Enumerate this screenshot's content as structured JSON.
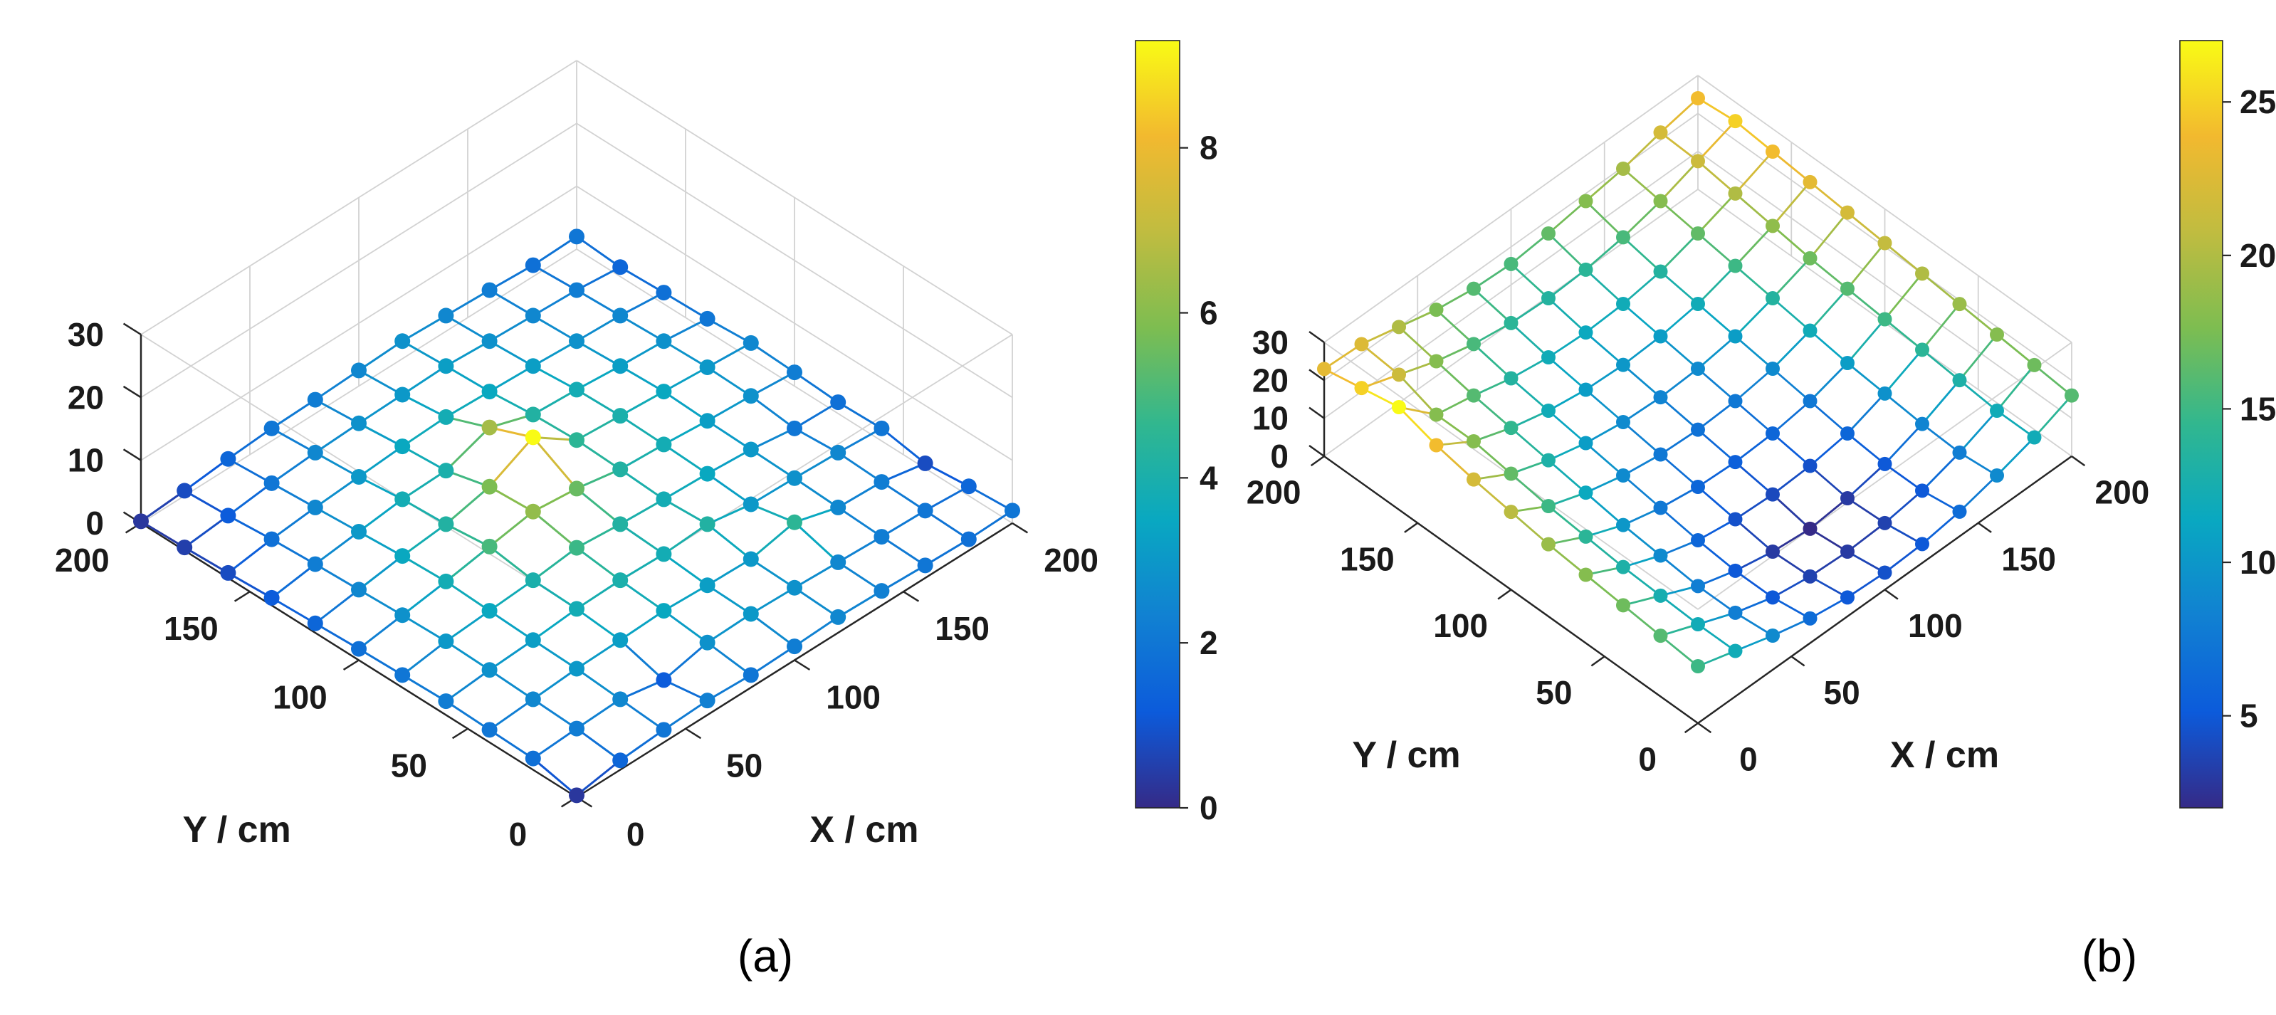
{
  "figure": {
    "background": "#ffffff",
    "text_color": "#1a1a1a",
    "grid_color": "#d2d2d2",
    "axis_color": "#262626",
    "colormap": {
      "name": "parula",
      "stops": [
        "#352a87",
        "#0c5bdb",
        "#1181d2",
        "#09a8c1",
        "#31b78f",
        "#7dbd51",
        "#c0bc40",
        "#f2b92f",
        "#f9fb15"
      ]
    },
    "panels": [
      {
        "caption": "(a)"
      },
      {
        "caption": "(b)"
      }
    ]
  },
  "chart_data": [
    {
      "type": "scatter",
      "subtype": "3d_mesh_surface_with_markers",
      "panel": "a",
      "xlabel": "X / cm",
      "ylabel": "Y / cm",
      "zlabel": "",
      "x": [
        0,
        20,
        40,
        60,
        80,
        100,
        120,
        140,
        160,
        180,
        200
      ],
      "y": [
        0,
        20,
        40,
        60,
        80,
        100,
        120,
        140,
        160,
        180,
        200
      ],
      "z": [
        [
          0.3,
          1.5,
          2.0,
          2.3,
          2.0,
          2.2,
          2.5,
          2.3,
          2.0,
          1.8,
          2.0
        ],
        [
          1.8,
          2.2,
          2.5,
          1.2,
          2.8,
          3.0,
          2.8,
          2.5,
          2.2,
          2.0,
          1.5
        ],
        [
          2.0,
          2.5,
          3.0,
          3.2,
          3.5,
          3.2,
          3.0,
          4.5,
          2.5,
          2.2,
          0.8
        ],
        [
          2.2,
          2.8,
          3.2,
          3.8,
          4.0,
          3.8,
          4.2,
          3.0,
          2.8,
          2.5,
          2.0
        ],
        [
          2.0,
          3.0,
          3.5,
          4.0,
          4.8,
          4.2,
          3.8,
          3.5,
          3.0,
          2.0,
          1.8
        ],
        [
          1.8,
          2.8,
          3.8,
          5.0,
          6.2,
          5.5,
          4.2,
          3.8,
          3.2,
          2.8,
          2.2
        ],
        [
          1.5,
          2.5,
          3.5,
          4.2,
          5.8,
          9.3,
          4.5,
          4.0,
          3.5,
          3.0,
          2.5
        ],
        [
          1.2,
          2.2,
          3.0,
          3.8,
          4.0,
          6.5,
          4.2,
          3.8,
          3.2,
          2.8,
          2.0
        ],
        [
          0.8,
          1.8,
          2.5,
          3.0,
          3.5,
          3.8,
          3.5,
          3.2,
          2.8,
          2.5,
          1.8
        ],
        [
          0.5,
          1.2,
          2.0,
          2.5,
          2.8,
          3.0,
          3.2,
          2.8,
          2.5,
          2.2,
          1.5
        ],
        [
          0.3,
          0.8,
          1.5,
          2.0,
          2.2,
          2.5,
          2.8,
          2.5,
          2.2,
          1.8,
          2.0
        ]
      ],
      "xticks": [
        0,
        50,
        100,
        150,
        200
      ],
      "yticks": [
        0,
        50,
        100,
        150,
        200
      ],
      "zticks": [
        0,
        10,
        20,
        30
      ],
      "zlim": [
        0,
        30
      ],
      "clim": [
        0,
        9.3
      ],
      "colorbar_ticks": [
        0,
        2,
        4,
        6,
        8
      ],
      "view": {
        "azimuth": -45,
        "elevation": 30
      },
      "grid": true,
      "colorbar_position": "right"
    },
    {
      "type": "scatter",
      "subtype": "3d_mesh_surface_with_markers",
      "panel": "b",
      "xlabel": "X / cm",
      "ylabel": "Y / cm",
      "zlabel": "",
      "x": [
        0,
        20,
        40,
        60,
        80,
        100,
        120,
        140,
        160,
        180,
        200
      ],
      "y": [
        0,
        20,
        40,
        60,
        80,
        100,
        120,
        140,
        160,
        180,
        200
      ],
      "z": [
        [
          15.0,
          12.0,
          9.0,
          6.5,
          5.0,
          4.5,
          5.0,
          6.5,
          9.0,
          12.0,
          16.0
        ],
        [
          16.0,
          12.0,
          8.0,
          5.0,
          3.5,
          3.0,
          3.5,
          5.0,
          8.0,
          12.0,
          17.0
        ],
        [
          17.0,
          12.5,
          8.0,
          5.0,
          3.0,
          2.0,
          3.0,
          5.0,
          8.5,
          13.0,
          18.0
        ],
        [
          18.0,
          13.0,
          9.0,
          6.0,
          4.5,
          4.0,
          4.5,
          6.0,
          9.5,
          14.0,
          19.0
        ],
        [
          19.0,
          14.0,
          10.0,
          7.5,
          6.0,
          5.5,
          6.0,
          7.5,
          10.5,
          15.0,
          20.0
        ],
        [
          20.5,
          15.0,
          11.5,
          9.0,
          7.5,
          7.0,
          7.5,
          9.0,
          12.0,
          16.0,
          21.0
        ],
        [
          22.0,
          16.5,
          13.0,
          10.5,
          9.0,
          8.5,
          9.0,
          10.5,
          13.5,
          17.0,
          22.0
        ],
        [
          24.0,
          18.0,
          14.5,
          12.0,
          10.5,
          10.0,
          10.5,
          12.0,
          15.0,
          18.5,
          23.0
        ],
        [
          27.0,
          18.0,
          16.0,
          13.5,
          12.0,
          11.5,
          12.0,
          13.5,
          16.5,
          20.0,
          24.0
        ],
        [
          25.0,
          21.5,
          18.0,
          15.5,
          14.0,
          13.5,
          14.0,
          15.5,
          18.0,
          21.5,
          25.0
        ],
        [
          23.0,
          22.5,
          20.0,
          17.5,
          16.0,
          15.5,
          16.5,
          18.0,
          19.5,
          22.0,
          24.0
        ]
      ],
      "xticks": [
        0,
        50,
        100,
        150,
        200
      ],
      "yticks": [
        0,
        50,
        100,
        150,
        200
      ],
      "zticks": [
        0,
        10,
        20,
        30
      ],
      "zlim": [
        0,
        30
      ],
      "clim": [
        2,
        27
      ],
      "colorbar_ticks": [
        5,
        10,
        15,
        20,
        25
      ],
      "view": {
        "azimuth": -45,
        "elevation": 30
      },
      "grid": true,
      "colorbar_position": "right"
    }
  ]
}
